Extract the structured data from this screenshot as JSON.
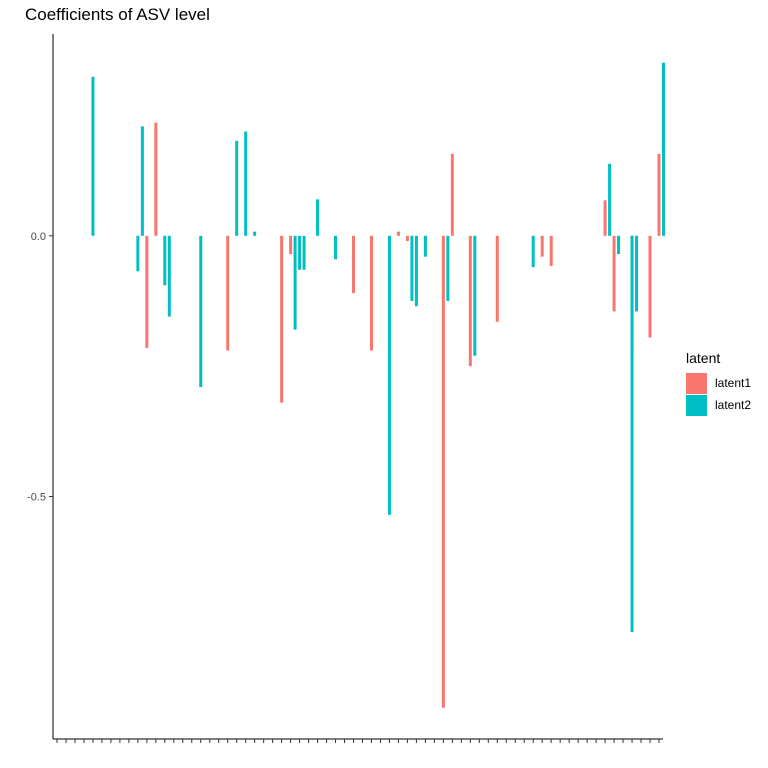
{
  "chart_data": {
    "type": "bar",
    "title": "Coefficients of ASV level",
    "xlabel": "",
    "ylabel": "",
    "ylim": [
      -0.965,
      0.387
    ],
    "yticks": [
      0.0,
      -0.5
    ],
    "ytick_labels": [
      "0.0",
      "-0.5"
    ],
    "x_count": 68,
    "grid": false,
    "legend": {
      "title": "latent",
      "placement": "right",
      "entries": [
        "latent1",
        "latent2"
      ]
    },
    "series": [
      {
        "name": "latent1",
        "color": "#F8766D",
        "points": [
          {
            "x": 11,
            "y": -0.215
          },
          {
            "x": 12,
            "y": 0.217
          },
          {
            "x": 20,
            "y": -0.22
          },
          {
            "x": 26,
            "y": -0.32
          },
          {
            "x": 27,
            "y": -0.035
          },
          {
            "x": 34,
            "y": -0.11
          },
          {
            "x": 36,
            "y": -0.22
          },
          {
            "x": 39,
            "y": 0.008
          },
          {
            "x": 40,
            "y": -0.01
          },
          {
            "x": 44,
            "y": -0.905
          },
          {
            "x": 45,
            "y": 0.157
          },
          {
            "x": 47,
            "y": -0.25
          },
          {
            "x": 50,
            "y": -0.165
          },
          {
            "x": 55,
            "y": -0.04
          },
          {
            "x": 56,
            "y": -0.058
          },
          {
            "x": 62,
            "y": 0.068
          },
          {
            "x": 63,
            "y": -0.145
          },
          {
            "x": 65,
            "y": -0.23
          },
          {
            "x": 67,
            "y": -0.195
          },
          {
            "x": 68,
            "y": 0.157
          }
        ]
      },
      {
        "name": "latent2",
        "color": "#00BFC4",
        "points": [
          {
            "x": 5,
            "y": 0.305
          },
          {
            "x": 10,
            "y": -0.068
          },
          {
            "x": 10.5,
            "y": 0.21
          },
          {
            "x": 13,
            "y": -0.095
          },
          {
            "x": 13.5,
            "y": -0.155
          },
          {
            "x": 17,
            "y": -0.29
          },
          {
            "x": 21,
            "y": 0.182
          },
          {
            "x": 22,
            "y": 0.2
          },
          {
            "x": 23,
            "y": 0.008
          },
          {
            "x": 27.5,
            "y": -0.18
          },
          {
            "x": 28,
            "y": -0.065
          },
          {
            "x": 28.5,
            "y": -0.065
          },
          {
            "x": 30,
            "y": 0.07
          },
          {
            "x": 32,
            "y": -0.045
          },
          {
            "x": 38,
            "y": -0.535
          },
          {
            "x": 40.5,
            "y": -0.125
          },
          {
            "x": 41,
            "y": -0.135
          },
          {
            "x": 42,
            "y": -0.04
          },
          {
            "x": 44.5,
            "y": -0.125
          },
          {
            "x": 47.5,
            "y": -0.23
          },
          {
            "x": 54,
            "y": -0.06
          },
          {
            "x": 62.5,
            "y": 0.138
          },
          {
            "x": 63.5,
            "y": -0.035
          },
          {
            "x": 65,
            "y": -0.76
          },
          {
            "x": 65.5,
            "y": -0.145
          },
          {
            "x": 68.5,
            "y": 0.332
          }
        ]
      }
    ]
  }
}
